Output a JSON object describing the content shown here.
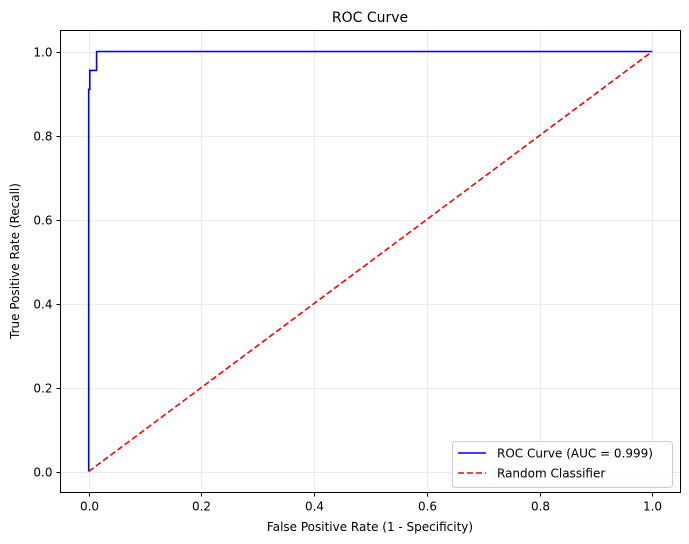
{
  "chart_data": {
    "type": "line",
    "title": "ROC Curve",
    "xlabel": "False Positive Rate (1 - Specificity)",
    "ylabel": "True Positive Rate (Recall)",
    "xlim": [
      -0.05,
      1.05
    ],
    "ylim": [
      -0.05,
      1.05
    ],
    "xticks": [
      0.0,
      0.2,
      0.4,
      0.6,
      0.8,
      1.0
    ],
    "yticks": [
      0.0,
      0.2,
      0.4,
      0.6,
      0.8,
      1.0
    ],
    "xtick_labels": [
      "0.0",
      "0.2",
      "0.4",
      "0.6",
      "0.8",
      "1.0"
    ],
    "ytick_labels": [
      "0.0",
      "0.2",
      "0.4",
      "0.6",
      "0.8",
      "1.0"
    ],
    "grid": true,
    "legend_position": "bottom-right",
    "series": [
      {
        "name": "ROC Curve (AUC = 0.999)",
        "color": "#0000ff",
        "style": "solid",
        "x": [
          0,
          0,
          0.002,
          0.002,
          0.014,
          0.014,
          1
        ],
        "y": [
          0,
          0.91,
          0.91,
          0.955,
          0.955,
          1,
          1
        ]
      },
      {
        "name": "Random Classifier",
        "color": "#ff0000",
        "style": "dashed",
        "x": [
          0,
          1
        ],
        "y": [
          0,
          1
        ]
      }
    ]
  }
}
